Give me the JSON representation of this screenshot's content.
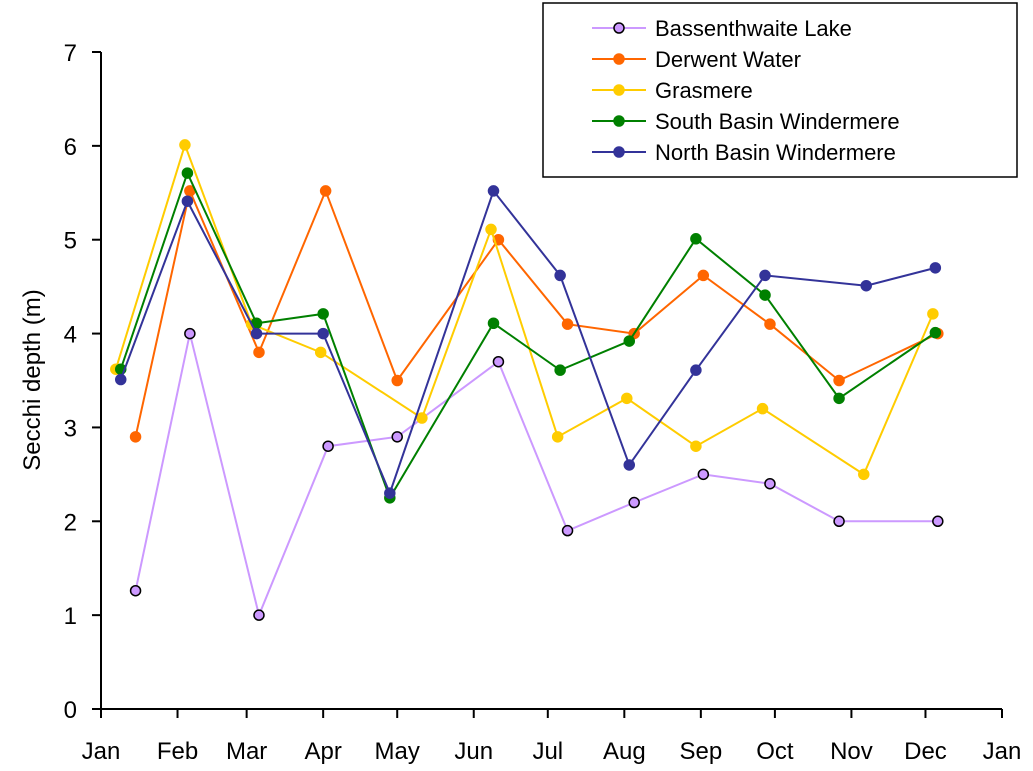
{
  "chart_data": {
    "type": "line",
    "y_label": "Secchi depth (m)",
    "xlim": [
      0,
      365
    ],
    "ylim": [
      0,
      7
    ],
    "xticks": [
      {
        "value": 0,
        "label": "Jan"
      },
      {
        "value": 31,
        "label": "Feb"
      },
      {
        "value": 59,
        "label": "Mar"
      },
      {
        "value": 90,
        "label": "Apr"
      },
      {
        "value": 120,
        "label": "May"
      },
      {
        "value": 151,
        "label": "Jun"
      },
      {
        "value": 181,
        "label": "Jul"
      },
      {
        "value": 212,
        "label": "Aug"
      },
      {
        "value": 243,
        "label": "Sep"
      },
      {
        "value": 273,
        "label": "Oct"
      },
      {
        "value": 304,
        "label": "Nov"
      },
      {
        "value": 334,
        "label": "Dec"
      },
      {
        "value": 365,
        "label": "Jan"
      }
    ],
    "yticks": [
      0,
      1,
      2,
      3,
      4,
      5,
      6,
      7
    ],
    "legend": "upper right",
    "series": [
      {
        "name": "Bassenthwaite Lake",
        "color": "#cc99ff",
        "edgecolor": "#000000",
        "x": [
          14,
          36,
          64,
          92,
          120,
          161,
          189,
          216,
          244,
          271,
          299,
          339
        ],
        "values": [
          1.26,
          4.0,
          1.0,
          2.8,
          2.9,
          3.7,
          1.9,
          2.2,
          2.5,
          2.4,
          2.0,
          2.0
        ]
      },
      {
        "name": "Derwent Water",
        "color": "#ff6600",
        "x": [
          14,
          36,
          64,
          91,
          120,
          161,
          189,
          216,
          244,
          271,
          299,
          339
        ],
        "values": [
          2.9,
          5.52,
          3.8,
          5.52,
          3.5,
          5.0,
          4.1,
          4.0,
          4.62,
          4.1,
          3.5,
          4.0
        ]
      },
      {
        "name": "Grasmere",
        "color": "#ffcc00",
        "x": [
          6,
          34,
          61,
          89,
          130,
          158,
          185,
          213,
          241,
          268,
          309,
          337
        ],
        "values": [
          3.62,
          6.01,
          4.1,
          3.8,
          3.1,
          5.11,
          2.9,
          3.31,
          2.8,
          3.2,
          2.5,
          4.21
        ]
      },
      {
        "name": "South Basin Windermere",
        "color": "#008000",
        "x": [
          8,
          35,
          63,
          90,
          117,
          159,
          186,
          214,
          241,
          269,
          299,
          338
        ],
        "values": [
          3.62,
          5.71,
          4.11,
          4.21,
          2.25,
          4.11,
          3.61,
          3.92,
          5.01,
          4.41,
          3.31,
          4.01
        ]
      },
      {
        "name": "North Basin Windermere",
        "color": "#333399",
        "x": [
          8,
          35,
          63,
          90,
          117,
          159,
          186,
          214,
          241,
          269,
          310,
          338
        ],
        "values": [
          3.51,
          5.41,
          4.0,
          4.0,
          2.3,
          5.52,
          4.62,
          2.6,
          3.61,
          4.62,
          4.51,
          4.7
        ]
      }
    ]
  }
}
